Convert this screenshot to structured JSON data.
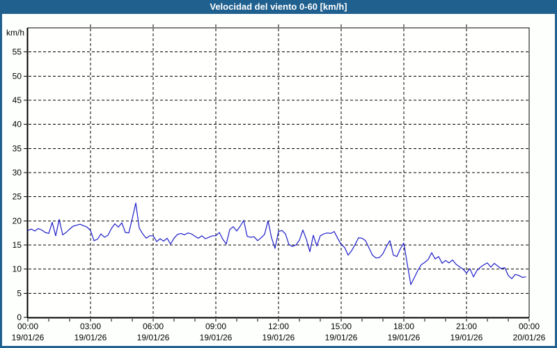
{
  "window": {
    "title": "Velocidad del viento 0-60 [km/h]"
  },
  "colors": {
    "titlebar_bg": "#1f608f",
    "frame": "#1f608f",
    "title_text": "#ffffff",
    "page_background": "#fbfdfa",
    "plot_background": "#fffffe",
    "grid": "#000000",
    "axis_text": "#000000",
    "series_line": "#1d1dc8"
  },
  "chart_data": {
    "type": "line",
    "title": "Velocidad del viento 0-60 [km/h]",
    "ylabel": "km/h",
    "ylim": [
      0,
      60
    ],
    "y_tick_step": 5,
    "y_ticks": [
      0,
      5,
      10,
      15,
      20,
      25,
      30,
      35,
      40,
      45,
      50,
      55
    ],
    "grid": "dashed",
    "legend_position": "none",
    "x_axis": {
      "span_hours": 24,
      "major_tick_hours": 3,
      "minor_tick_hours": 1,
      "tick_labels": [
        {
          "time": "00:00",
          "date": "19/01/26",
          "hour": 0
        },
        {
          "time": "03:00",
          "date": "19/01/26",
          "hour": 3
        },
        {
          "time": "06:00",
          "date": "19/01/26",
          "hour": 6
        },
        {
          "time": "09:00",
          "date": "19/01/26",
          "hour": 9
        },
        {
          "time": "12:00",
          "date": "19/01/26",
          "hour": 12
        },
        {
          "time": "15:00",
          "date": "19/01/26",
          "hour": 15
        },
        {
          "time": "18:00",
          "date": "19/01/26",
          "hour": 18
        },
        {
          "time": "21:00",
          "date": "19/01/26",
          "hour": 21
        },
        {
          "time": "00:00",
          "date": "20/01/26",
          "hour": 24
        }
      ]
    },
    "series": [
      {
        "name": "Velocidad del viento",
        "unit": "km/h",
        "start_hour": 0,
        "sample_interval_minutes": 10,
        "values": [
          18.0,
          18.3,
          17.9,
          18.4,
          18.1,
          17.6,
          17.4,
          19.7,
          16.9,
          20.3,
          17.1,
          17.6,
          18.3,
          18.9,
          19.1,
          19.3,
          19.0,
          18.7,
          18.0,
          15.9,
          16.2,
          17.3,
          16.6,
          17.0,
          18.4,
          19.4,
          18.7,
          19.6,
          17.6,
          17.5,
          20.5,
          23.7,
          18.5,
          17.3,
          16.4,
          16.9,
          16.9,
          15.7,
          16.3,
          15.8,
          16.4,
          15.2,
          16.4,
          17.2,
          17.4,
          17.1,
          17.5,
          17.3,
          16.8,
          16.4,
          16.9,
          16.3,
          16.6,
          16.9,
          16.9,
          17.6,
          16.2,
          15.2,
          18.2,
          18.8,
          17.9,
          18.9,
          20.1,
          16.8,
          16.6,
          16.7,
          15.9,
          16.5,
          17.2,
          20.0,
          16.5,
          14.3,
          17.8,
          18.0,
          17.3,
          15.1,
          14.7,
          15.0,
          16.0,
          18.1,
          16.2,
          13.6,
          17.0,
          14.8,
          16.9,
          17.3,
          17.5,
          17.4,
          17.8,
          16.4,
          15.1,
          14.5,
          12.9,
          13.8,
          15.1,
          16.5,
          16.4,
          15.9,
          14.4,
          12.9,
          12.3,
          12.4,
          13.2,
          14.7,
          15.9,
          12.9,
          12.6,
          14.2,
          15.4,
          11.0,
          6.8,
          8.2,
          9.7,
          10.9,
          11.4,
          12.0,
          13.4,
          12.1,
          12.6,
          11.2,
          11.8,
          11.3,
          11.9,
          11.0,
          10.5,
          10.0,
          9.2,
          10.1,
          8.4,
          9.7,
          10.4,
          10.9,
          11.3,
          10.4,
          11.2,
          10.6,
          10.1,
          10.3,
          8.7,
          8.0,
          8.9,
          8.7,
          8.3,
          8.4
        ]
      }
    ]
  }
}
